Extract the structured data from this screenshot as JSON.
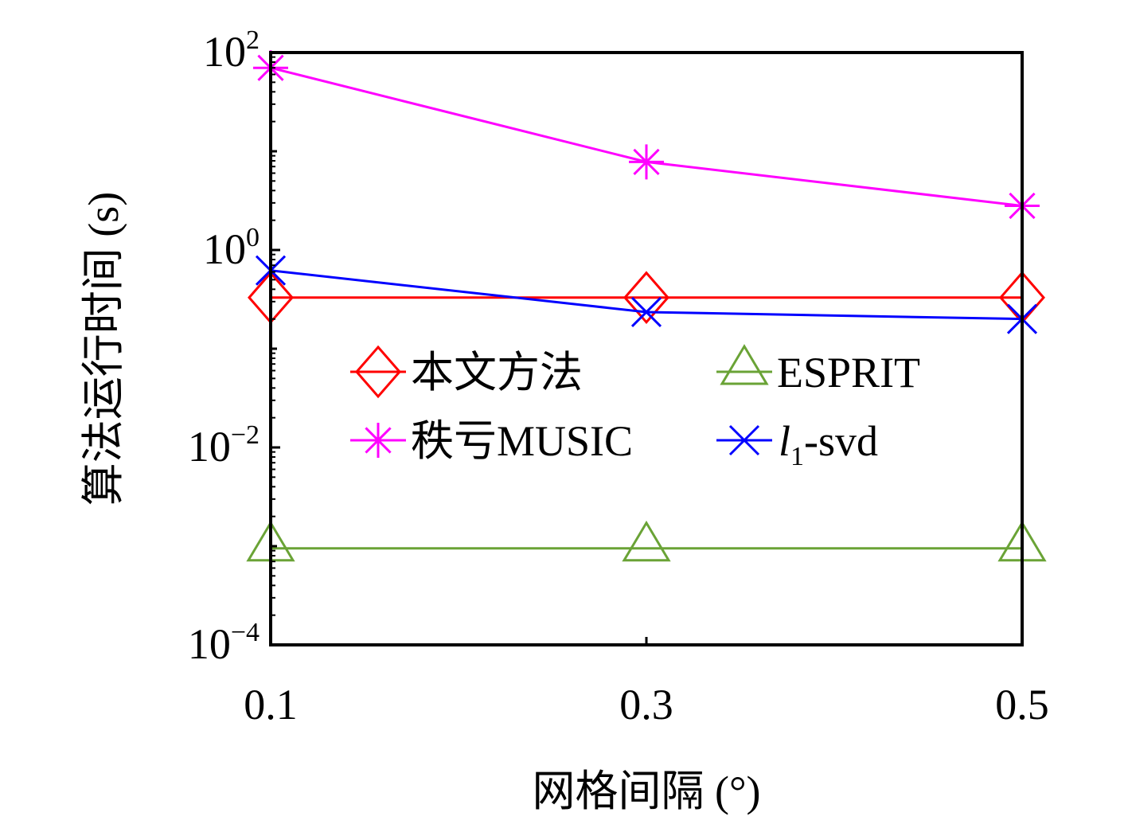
{
  "chart_data": {
    "type": "line",
    "xlabel": "网格间隔 (°)",
    "ylabel": "算法运行时间 (s)",
    "x": [
      0.1,
      0.3,
      0.5
    ],
    "x_tick_labels": [
      "0.1",
      "0.3",
      "0.5"
    ],
    "xlim": [
      0.1,
      0.5
    ],
    "yscale": "log",
    "ylim": [
      0.0001,
      100
    ],
    "y_ticks": [
      {
        "base": "10",
        "exp": "2",
        "value": 100
      },
      {
        "base": "10",
        "exp": "0",
        "value": 1
      },
      {
        "base": "10",
        "exp": "−2",
        "value": 0.01
      },
      {
        "base": "10",
        "exp": "−4",
        "value": 0.0001
      }
    ],
    "grid": false,
    "legend_position": "center",
    "series": [
      {
        "name": "本文方法",
        "marker": "diamond",
        "color": "#ff0000",
        "values": [
          0.33,
          0.33,
          0.33
        ]
      },
      {
        "name": "ESPRIT",
        "marker": "triangle",
        "color": "#6aa336",
        "values": [
          0.00095,
          0.00095,
          0.00095
        ]
      },
      {
        "name": "秩亏MUSIC",
        "marker": "asterisk",
        "color": "#ff00ff",
        "values": [
          70,
          7.8,
          2.8
        ]
      },
      {
        "name": "l1-svd",
        "name_parts": {
          "italic": "l",
          "sub": "1",
          "rest": "-svd"
        },
        "marker": "x",
        "color": "#0000ff",
        "values": [
          0.62,
          0.235,
          0.2
        ]
      }
    ]
  }
}
